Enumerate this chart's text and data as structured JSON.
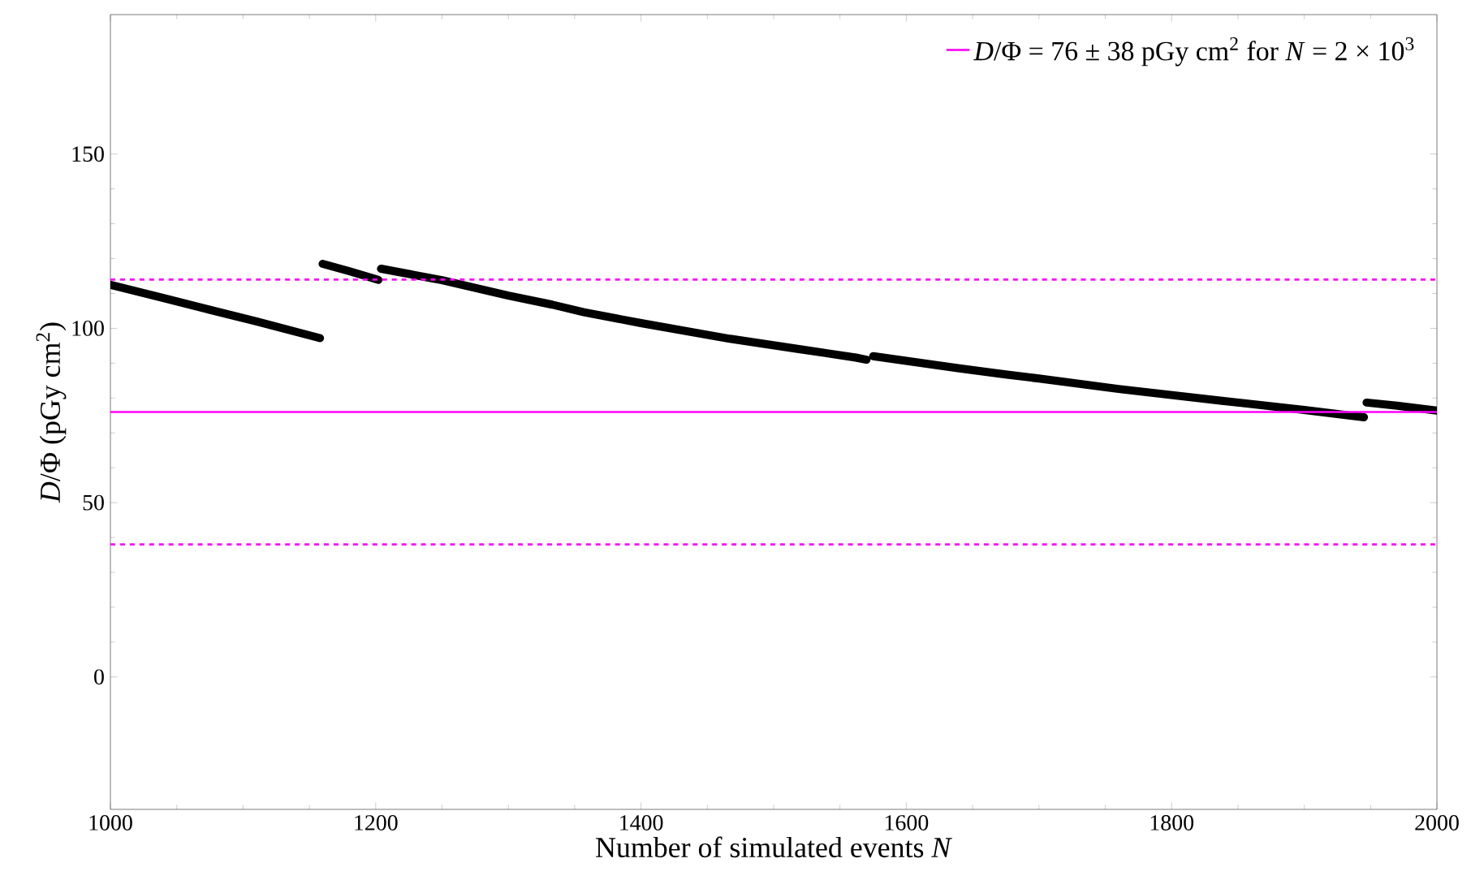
{
  "chart_data": {
    "type": "line",
    "xlabel": "Number of simulated events *N*",
    "ylabel": "*D*/Φ (pGy cm$^{2}$)",
    "x": [
      1000,
      1040,
      1072,
      1110,
      1158,
      1159,
      1160,
      1180,
      1202,
      1203,
      1204,
      1250,
      1300,
      1333,
      1357,
      1400,
      1467,
      1520,
      1562,
      1570,
      1571,
      1575,
      1640,
      1676,
      1700,
      1760,
      1838,
      1900,
      1945,
      1946,
      1947,
      1970,
      2000
    ],
    "series": [
      {
        "color": "#000000",
        "values": [
          112.5,
          108.7,
          105.6,
          102.0,
          97.2,
          null,
          118.5,
          116.4,
          113.9,
          null,
          117.1,
          113.8,
          109.4,
          106.8,
          104.6,
          101.5,
          97.0,
          94.0,
          91.6,
          91.0,
          null,
          92.0,
          88.5,
          86.7,
          85.6,
          82.6,
          79.2,
          76.6,
          74.5,
          null,
          78.7,
          77.8,
          76.4
        ]
      }
    ],
    "ref_lines": [
      {
        "axis": "y",
        "value": 76,
        "label": "*D*/Φ = 76 ± 38 pGy cm$^{2}$ for *N* = 2 × 10$^{3}$",
        "color": "#ff00ff",
        "line_style": "solid"
      },
      {
        "axis": "y",
        "value": 114,
        "color": "#ff00ff",
        "line_style": "dashed"
      },
      {
        "axis": "y",
        "value": 38,
        "color": "#ff00ff",
        "line_style": "dashed"
      }
    ],
    "xlim": [
      1000,
      2000
    ],
    "ylim": [
      -38,
      190
    ],
    "xticks": [
      1000,
      1200,
      1400,
      1600,
      1800,
      2000
    ],
    "yticks": [
      0,
      50,
      100,
      150
    ],
    "grid": false,
    "legend": "top right"
  }
}
